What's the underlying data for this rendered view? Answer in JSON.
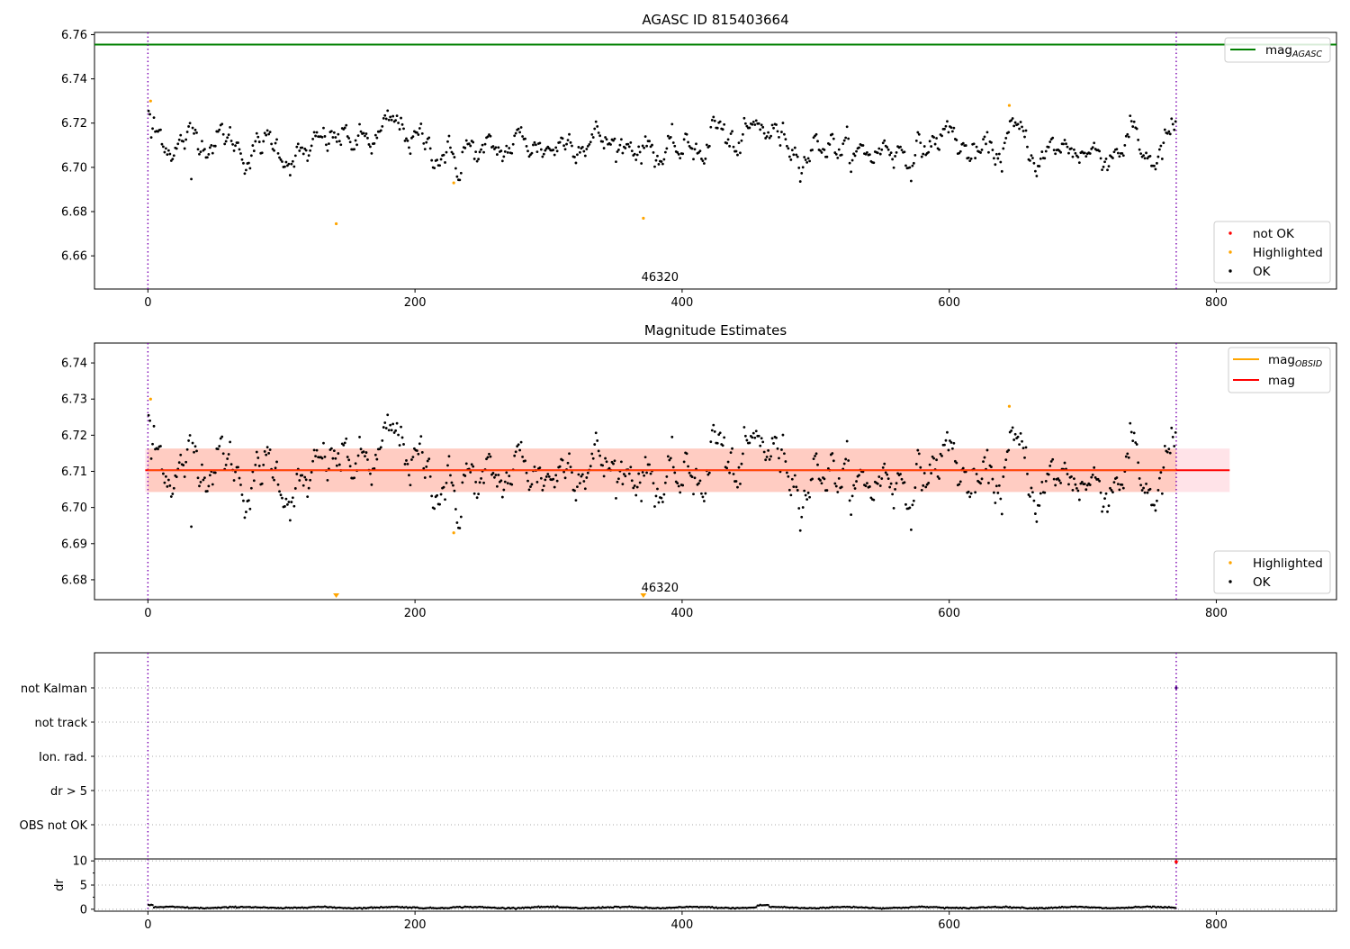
{
  "chart_data": [
    {
      "type": "scatter",
      "title": "AGASC ID 815403664",
      "xlim": [
        -40,
        890
      ],
      "ylim": [
        6.645,
        6.761
      ],
      "xticks": [
        0,
        200,
        400,
        600,
        800
      ],
      "yticks": [
        6.66,
        6.68,
        6.7,
        6.72,
        6.74,
        6.76
      ],
      "grid": false,
      "vlines": [
        0,
        770
      ],
      "hline": {
        "name": "mag_AGASC",
        "value": 6.7555,
        "color": "#008000"
      },
      "obsid_label": {
        "text": "46320",
        "x": 385
      },
      "highlighted": [
        [
          2,
          6.73
        ],
        [
          141,
          6.6745
        ],
        [
          229,
          6.693
        ],
        [
          371,
          6.677
        ],
        [
          645,
          6.728
        ]
      ],
      "series_legend": [
        {
          "name": "not OK",
          "color": "#ff0000"
        },
        {
          "name": "Highlighted",
          "color": "#ffa500"
        },
        {
          "name": "OK",
          "color": "#000000"
        }
      ],
      "line_legend": [
        {
          "base": "mag",
          "sub": "AGASC",
          "color": "#008000"
        }
      ],
      "legend_placement": "upper-right and lower-right"
    },
    {
      "type": "scatter",
      "title": "Magnitude Estimates",
      "xlim": [
        -40,
        890
      ],
      "ylim": [
        6.6745,
        6.7455
      ],
      "xticks": [
        0,
        200,
        400,
        600,
        800
      ],
      "yticks": [
        6.68,
        6.69,
        6.7,
        6.71,
        6.72,
        6.73,
        6.74
      ],
      "grid": false,
      "vlines": [
        0,
        770
      ],
      "mag": {
        "value": 6.7103,
        "band": [
          6.7043,
          6.7163
        ],
        "band_x": [
          -2,
          810
        ],
        "obsid_band_x": [
          0,
          770
        ]
      },
      "obsid_label": {
        "text": "46320",
        "x": 385
      },
      "highlighted": [
        [
          2,
          6.73
        ],
        [
          229,
          6.693
        ],
        [
          645,
          6.728
        ]
      ],
      "offscale_markers": [
        141,
        371
      ],
      "series_legend": [
        {
          "name": "Highlighted",
          "color": "#ffa500"
        },
        {
          "name": "OK",
          "color": "#000000"
        }
      ],
      "line_legend": [
        {
          "base": "mag",
          "sub": "OBSID",
          "color": "#ffa500"
        },
        {
          "base": "mag",
          "sub": "",
          "color": "#ff0000"
        }
      ],
      "legend_placement": "upper-right and lower-right"
    },
    {
      "type": "scatter",
      "title": "",
      "xlim": [
        -40,
        890
      ],
      "categories": [
        "not Kalman",
        "not track",
        "Ion. rad.",
        "dr > 5",
        "OBS not OK"
      ],
      "flag_points": [
        {
          "category": "not Kalman",
          "x": 770
        }
      ],
      "vlines": [
        0,
        770
      ],
      "grid": "horizontal dotted"
    },
    {
      "type": "scatter",
      "title": "",
      "ylabel": "dr",
      "xlim": [
        -40,
        890
      ],
      "ylim": [
        -0.4,
        10.4
      ],
      "xticks": [
        0,
        200,
        400,
        600,
        800
      ],
      "yticks": [
        0,
        5,
        10
      ],
      "vlines": [
        0,
        770
      ],
      "grid": "horizontal dotted",
      "dr_outlier": {
        "x": 770,
        "value": 9.8
      },
      "dr_typical": 0.35
    }
  ]
}
